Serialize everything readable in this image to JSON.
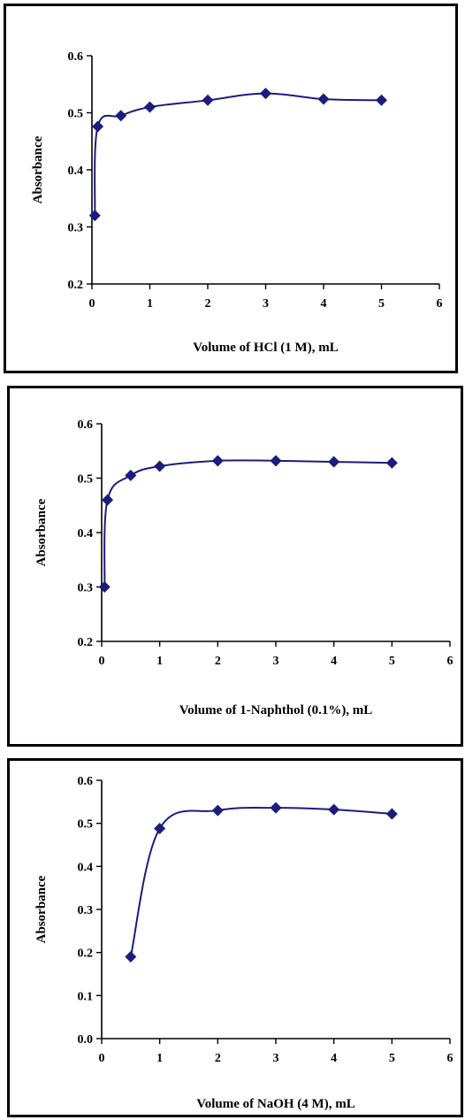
{
  "chart_data": [
    {
      "type": "scatter",
      "title": "",
      "xlabel": "Volume of HCl (1 M), mL",
      "ylabel": "Absorbance",
      "xlim": [
        0,
        6
      ],
      "ylim": [
        0.2,
        0.6
      ],
      "xticks": [
        "0",
        "1",
        "2",
        "3",
        "4",
        "5",
        "6"
      ],
      "yticks": [
        "0.2",
        "0.3",
        "0.4",
        "0.5",
        "0.6"
      ],
      "grid": false,
      "line": "smooth",
      "color": "#1c1c7c",
      "series": [
        {
          "x": [
            0.05,
            0.1,
            0.5,
            1,
            2,
            3,
            4,
            5
          ],
          "y": [
            0.32,
            0.476,
            0.495,
            0.51,
            0.522,
            0.534,
            0.524,
            0.522
          ]
        }
      ]
    },
    {
      "type": "scatter",
      "title": "",
      "xlabel": "Volume of 1-Naphthol (0.1%), mL",
      "ylabel": "Absorbance",
      "xlim": [
        0,
        6
      ],
      "ylim": [
        0.2,
        0.6
      ],
      "xticks": [
        "0",
        "1",
        "2",
        "3",
        "4",
        "5",
        "6"
      ],
      "yticks": [
        "0.2",
        "0.3",
        "0.4",
        "0.5",
        "0.6"
      ],
      "grid": false,
      "line": "smooth",
      "color": "#1c1c7c",
      "series": [
        {
          "x": [
            0.05,
            0.1,
            0.5,
            1,
            2,
            3,
            4,
            5
          ],
          "y": [
            0.3,
            0.46,
            0.505,
            0.522,
            0.532,
            0.532,
            0.53,
            0.528
          ]
        }
      ]
    },
    {
      "type": "scatter",
      "title": "",
      "xlabel": "Volume of NaOH (4 M), mL",
      "ylabel": "Absorbance",
      "xlim": [
        0,
        6
      ],
      "ylim": [
        0.0,
        0.6
      ],
      "xticks": [
        "0",
        "1",
        "2",
        "3",
        "4",
        "5",
        "6"
      ],
      "yticks": [
        "0.0",
        "0.1",
        "0.2",
        "0.3",
        "0.4",
        "0.5",
        "0.6"
      ],
      "grid": false,
      "line": "smooth",
      "color": "#1c1c7c",
      "series": [
        {
          "x": [
            0.5,
            1,
            2,
            3,
            4,
            5
          ],
          "y": [
            0.19,
            0.488,
            0.53,
            0.536,
            0.532,
            0.522
          ]
        }
      ]
    }
  ]
}
